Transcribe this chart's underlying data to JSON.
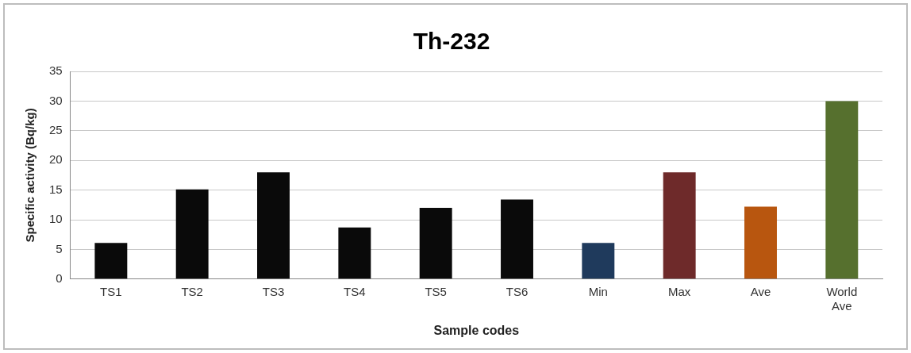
{
  "chart_data": {
    "type": "bar",
    "title": "Th-232",
    "xlabel": "Sample codes",
    "ylabel": "Specific activity (Bq/kg)",
    "categories": [
      "TS1",
      "TS2",
      "TS3",
      "TS4",
      "TS5",
      "TS6",
      "Min",
      "Max",
      "Ave",
      "World Ave"
    ],
    "values": [
      6.1,
      15.1,
      18,
      8.7,
      12,
      13.4,
      6.1,
      18,
      12.2,
      30
    ],
    "colors": [
      "#0a0a0a",
      "#0a0a0a",
      "#0a0a0a",
      "#0a0a0a",
      "#0a0a0a",
      "#0a0a0a",
      "#1f3a5c",
      "#6e2a2a",
      "#b8560f",
      "#56702e"
    ],
    "ylim": [
      0,
      35
    ],
    "yticks": [
      0,
      5,
      10,
      15,
      20,
      25,
      30,
      35
    ],
    "grid": "y"
  }
}
